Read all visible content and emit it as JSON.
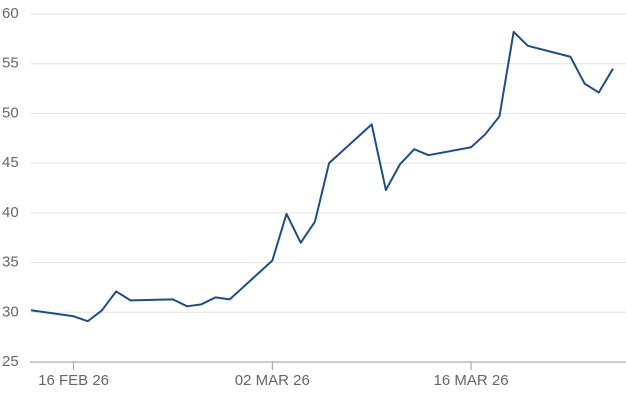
{
  "chart_data": {
    "type": "line",
    "x": [
      "2026-02-13",
      "2026-02-16",
      "2026-02-17",
      "2026-02-18",
      "2026-02-19",
      "2026-02-20",
      "2026-02-23",
      "2026-02-24",
      "2026-02-25",
      "2026-02-26",
      "2026-02-27",
      "2026-03-02",
      "2026-03-03",
      "2026-03-04",
      "2026-03-05",
      "2026-03-06",
      "2026-03-09",
      "2026-03-10",
      "2026-03-11",
      "2026-03-12",
      "2026-03-13",
      "2026-03-16",
      "2026-03-17",
      "2026-03-18",
      "2026-03-19",
      "2026-03-20",
      "2026-03-23",
      "2026-03-24",
      "2026-03-25",
      "2026-03-26"
    ],
    "values": [
      30.2,
      29.6,
      29.1,
      30.2,
      32.1,
      31.2,
      31.3,
      30.6,
      30.8,
      31.5,
      31.3,
      35.2,
      39.9,
      37.0,
      39.1,
      45.0,
      48.9,
      42.3,
      44.9,
      46.4,
      45.8,
      46.6,
      47.9,
      49.7,
      58.2,
      56.8,
      55.7,
      53.0,
      52.1,
      54.5
    ],
    "color": "#1d4f86",
    "xlim": [
      "2026-02-13",
      "2026-03-26"
    ],
    "xticks": [
      {
        "value": "2026-02-16",
        "label": "16 FEB 26"
      },
      {
        "value": "2026-03-02",
        "label": "02 MAR 26"
      },
      {
        "value": "2026-03-16",
        "label": "16 MAR 26"
      }
    ],
    "ylim": [
      25,
      60
    ],
    "yticks": [
      25,
      30,
      35,
      40,
      45,
      50,
      55,
      60
    ],
    "grid": true
  }
}
